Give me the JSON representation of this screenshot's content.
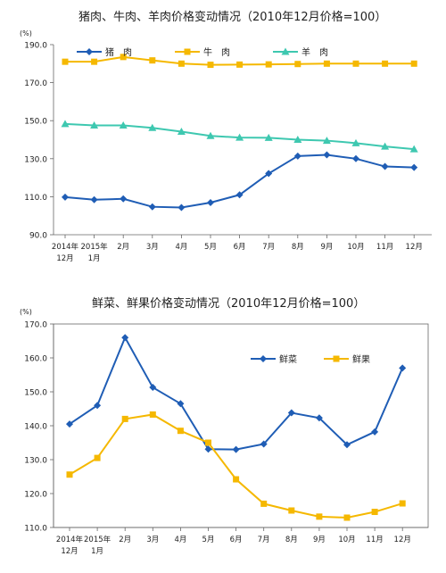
{
  "chart_data": [
    {
      "type": "line",
      "title": "猪肉、牛肉、羊肉价格变动情况（2010年12月价格=100）",
      "ylabel": "(%)",
      "ylim": [
        90.0,
        190.0
      ],
      "yticks": [
        "190.0",
        "170.0",
        "150.0",
        "130.0",
        "110.0",
        "90.0"
      ],
      "categories": [
        "2014年12月",
        "2015年1月",
        "2月",
        "3月",
        "4月",
        "5月",
        "6月",
        "7月",
        "8月",
        "9月",
        "10月",
        "11月",
        "12月"
      ],
      "x_tick_labels": [
        [
          "2014年",
          "12月"
        ],
        [
          "2015年",
          "1月"
        ],
        [
          "2月"
        ],
        [
          "3月"
        ],
        [
          "4月"
        ],
        [
          "5月"
        ],
        [
          "6月"
        ],
        [
          "7月"
        ],
        [
          "8月"
        ],
        [
          "9月"
        ],
        [
          "10月"
        ],
        [
          "11月"
        ],
        [
          "12月"
        ]
      ],
      "legend_position": "top",
      "series": [
        {
          "name": "猪　肉",
          "color": "#1F5DB5",
          "marker": "diamond",
          "values": [
            109.8,
            108.4,
            108.9,
            104.7,
            104.3,
            106.9,
            111.0,
            122.2,
            131.4,
            132.0,
            130.0,
            125.9,
            125.4
          ]
        },
        {
          "name": "牛　肉",
          "color": "#F5B800",
          "marker": "square",
          "values": [
            181.0,
            181.0,
            183.5,
            181.7,
            180.0,
            179.4,
            179.5,
            179.6,
            179.8,
            180.0,
            180.0,
            180.0,
            180.0
          ]
        },
        {
          "name": "羊　肉",
          "color": "#3EC8B0",
          "marker": "triangle",
          "values": [
            148.3,
            147.5,
            147.5,
            146.2,
            144.2,
            142.0,
            141.1,
            141.0,
            140.0,
            139.5,
            138.2,
            136.4,
            135.0
          ]
        }
      ]
    },
    {
      "type": "line",
      "title": "鲜菜、鲜果价格变动情况（2010年12月价格=100）",
      "ylabel": "(%)",
      "ylim": [
        110.0,
        170.0
      ],
      "yticks": [
        "170.0",
        "160.0",
        "150.0",
        "140.0",
        "130.0",
        "120.0",
        "110.0"
      ],
      "categories": [
        "2014年12月",
        "2015年1月",
        "2月",
        "3月",
        "4月",
        "5月",
        "6月",
        "7月",
        "8月",
        "9月",
        "10月",
        "11月",
        "12月"
      ],
      "x_tick_labels": [
        [
          "2014年",
          "12月"
        ],
        [
          "2015年",
          "1月"
        ],
        [
          "2月"
        ],
        [
          "3月"
        ],
        [
          "4月"
        ],
        [
          "5月"
        ],
        [
          "6月"
        ],
        [
          "7月"
        ],
        [
          "8月"
        ],
        [
          "9月"
        ],
        [
          "10月"
        ],
        [
          "11月"
        ],
        [
          "12月"
        ]
      ],
      "legend_position": "top-right",
      "series": [
        {
          "name": "鲜菜",
          "color": "#1F5DB5",
          "marker": "diamond",
          "values": [
            140.5,
            146.0,
            166.0,
            151.3,
            146.5,
            133.1,
            133.0,
            134.6,
            143.8,
            142.3,
            134.4,
            138.2,
            157.0
          ]
        },
        {
          "name": "鲜果",
          "color": "#F5B800",
          "marker": "square",
          "values": [
            125.6,
            130.5,
            142.0,
            143.3,
            138.5,
            135.0,
            124.2,
            117.0,
            115.0,
            113.2,
            112.9,
            114.6,
            117.1
          ]
        }
      ]
    }
  ]
}
